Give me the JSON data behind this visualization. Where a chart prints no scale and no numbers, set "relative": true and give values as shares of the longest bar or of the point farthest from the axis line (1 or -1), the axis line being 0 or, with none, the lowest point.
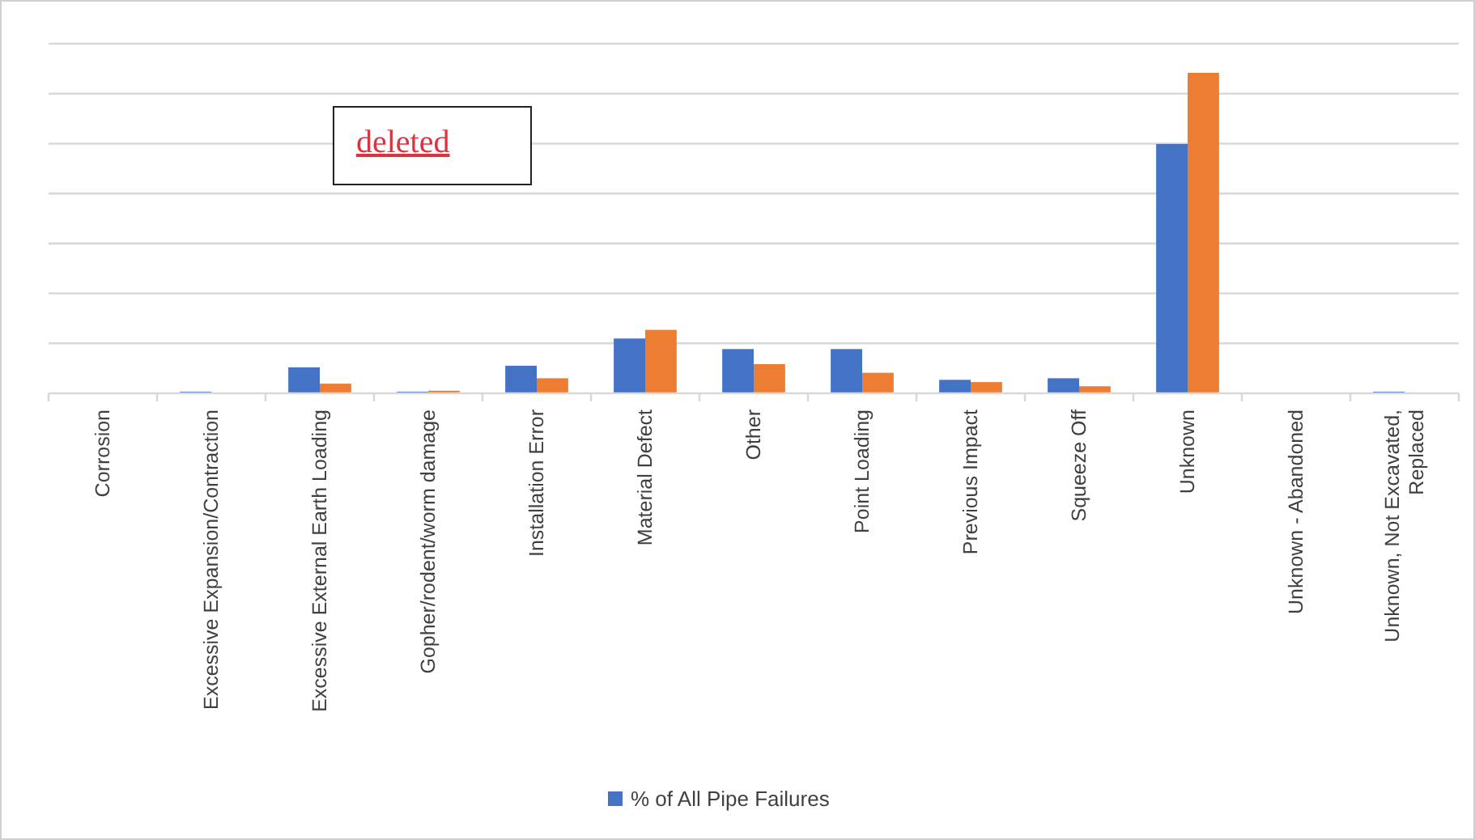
{
  "chart_data": {
    "type": "bar",
    "relative": true,
    "grid": true,
    "legend": "bottom",
    "annotations": [
      "deleted"
    ],
    "categories": [
      "Corrosion",
      "Excessive Expansion/Contraction",
      "Excessive External Earth Loading",
      "Gopher/rodent/worm damage",
      "Installation Error",
      "Material Defect",
      "Other",
      "Point Loading",
      "Previous Impact",
      "Squeeze Off",
      "Unknown",
      "Unknown - Abandoned",
      "Unknown, Not Excavated, Replaced"
    ],
    "series": [
      {
        "name": "% of All Pipe Failures",
        "color": "#4472c4",
        "values": [
          0,
          0.005,
          0.081,
          0.005,
          0.086,
          0.171,
          0.138,
          0.138,
          0.042,
          0.047,
          0.778,
          0,
          0.005
        ]
      },
      {
        "color": "#ed7d31",
        "values": [
          0,
          0,
          0.03,
          0.008,
          0.047,
          0.198,
          0.091,
          0.064,
          0.035,
          0.022,
          1,
          0,
          0
        ]
      }
    ]
  }
}
